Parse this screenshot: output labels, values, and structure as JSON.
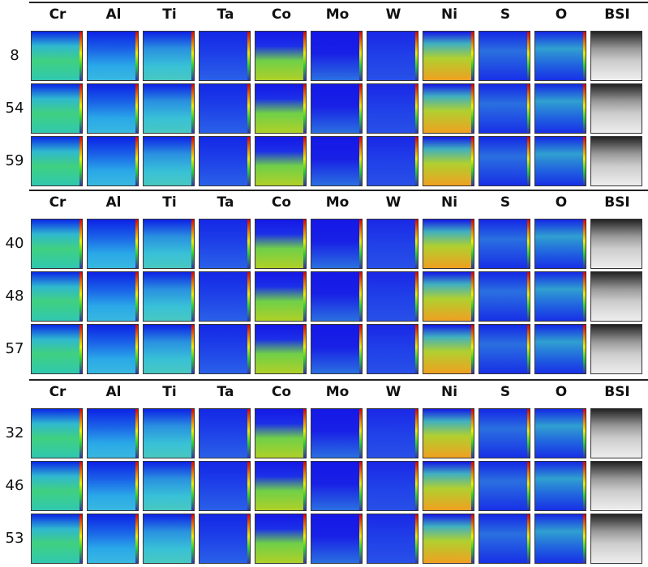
{
  "panels": [
    {
      "columns": [
        "Cr",
        "Al",
        "Ti",
        "Ta",
        "Co",
        "Mo",
        "W",
        "Ni",
        "S",
        "O",
        "BSI"
      ],
      "rows": [
        "8",
        "54",
        "59"
      ]
    },
    {
      "columns": [
        "Cr",
        "Al",
        "Ti",
        "Ta",
        "Co",
        "Mo",
        "W",
        "Ni",
        "S",
        "O",
        "BSI"
      ],
      "rows": [
        "40",
        "48",
        "57"
      ]
    },
    {
      "columns": [
        "Cr",
        "Al",
        "Ti",
        "Ta",
        "Co",
        "Mo",
        "W",
        "Ni",
        "S",
        "O",
        "BSI"
      ],
      "rows": [
        "32",
        "46",
        "53"
      ]
    }
  ]
}
